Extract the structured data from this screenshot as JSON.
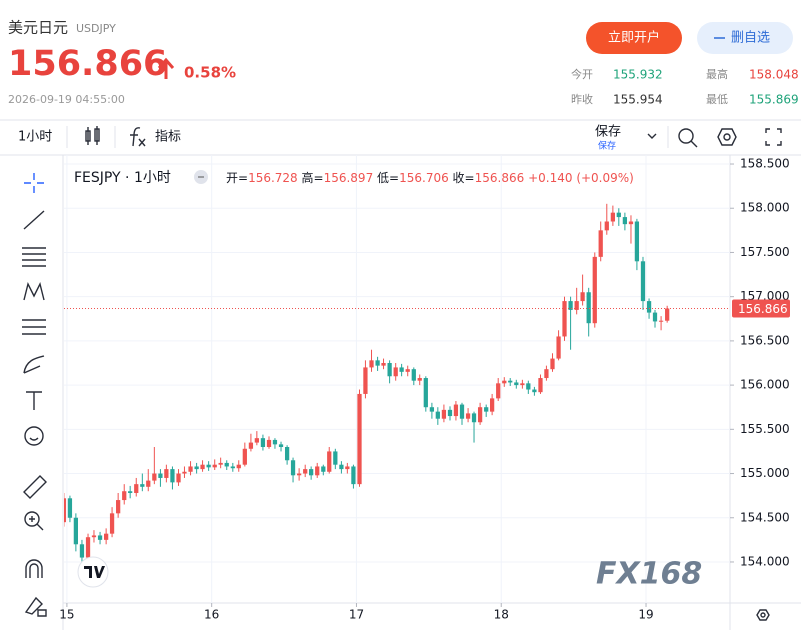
{
  "header": {
    "name": "美元日元",
    "code": "USDJPY",
    "price": "156.866",
    "change": "0.58%",
    "time": "2026-09-19 04:55:00"
  },
  "buttons": {
    "open_account": "立即开户",
    "remove_watch": "删自选"
  },
  "stats": [
    {
      "label": "今开",
      "value": "155.932",
      "color": "#1fa37a"
    },
    {
      "label": "最高",
      "value": "158.048",
      "color": "#e8433d"
    },
    {
      "label": "昨收",
      "value": "155.954",
      "color": "#333333"
    },
    {
      "label": "最低",
      "value": "155.869",
      "color": "#1fa37a"
    }
  ],
  "toolbar": {
    "interval": "1小时",
    "indicators": "指标",
    "save": "保存",
    "save_sub": "保存"
  },
  "chart_data": {
    "type": "candlestick",
    "title": "FESJPY · 1小时",
    "ohlc_labels": [
      "开=",
      "高=",
      "低=",
      "收="
    ],
    "change": "+0.140",
    "change_pct": "(+0.09%)",
    "watermark": "FX168",
    "up_color": "#ef5350",
    "down_color": "#26a69a",
    "grid": true,
    "xlim": [
      14.98,
      19.58
    ],
    "xticks": [
      15,
      16,
      17,
      18,
      19
    ],
    "ylim": [
      153.536,
      158.602
    ],
    "yticks": [
      {
        "value": 154,
        "label": "154.000"
      },
      {
        "value": 154.5,
        "label": "154.500"
      },
      {
        "value": 155,
        "label": "155.000"
      },
      {
        "value": 155.5,
        "label": "155.500"
      },
      {
        "value": 156,
        "label": "156.000"
      },
      {
        "value": 156.5,
        "label": "156.500"
      },
      {
        "value": 157,
        "label": "157.000"
      },
      {
        "value": 157.5,
        "label": "157.500"
      },
      {
        "value": 158,
        "label": "158.000"
      },
      {
        "value": 158.5,
        "label": "158.500"
      }
    ],
    "x": [
      14.979,
      15.021,
      15.062,
      15.104,
      15.146,
      15.187,
      15.229,
      15.271,
      15.312,
      15.354,
      15.396,
      15.437,
      15.479,
      15.521,
      15.562,
      15.604,
      15.646,
      15.687,
      15.729,
      15.771,
      15.812,
      15.854,
      15.896,
      15.937,
      15.979,
      16.021,
      16.062,
      16.104,
      16.146,
      16.187,
      16.229,
      16.271,
      16.312,
      16.354,
      16.396,
      16.437,
      16.479,
      16.521,
      16.562,
      16.604,
      16.646,
      16.687,
      16.729,
      16.771,
      16.812,
      16.854,
      16.896,
      16.937,
      16.979,
      17.021,
      17.062,
      17.104,
      17.146,
      17.187,
      17.229,
      17.271,
      17.312,
      17.354,
      17.396,
      17.437,
      17.479,
      17.521,
      17.562,
      17.604,
      17.646,
      17.687,
      17.729,
      17.771,
      17.812,
      17.854,
      17.896,
      17.937,
      17.979,
      18.021,
      18.062,
      18.104,
      18.146,
      18.187,
      18.229,
      18.271,
      18.312,
      18.354,
      18.396,
      18.437,
      18.479,
      18.521,
      18.562,
      18.604,
      18.646,
      18.687,
      18.729,
      18.771,
      18.812,
      18.854,
      18.896,
      18.937,
      18.979,
      19.021,
      19.062,
      19.104,
      19.146
    ],
    "open": [
      154.45,
      154.72,
      154.5,
      154.2,
      154.05,
      154.28,
      154.3,
      154.25,
      154.32,
      154.55,
      154.7,
      154.8,
      154.78,
      154.88,
      154.85,
      154.92,
      155.0,
      154.95,
      155.05,
      154.9,
      155.0,
      155.02,
      155.08,
      155.05,
      155.1,
      155.07,
      155.1,
      155.12,
      155.08,
      155.06,
      155.1,
      155.28,
      155.35,
      155.4,
      155.3,
      155.38,
      155.33,
      155.3,
      155.15,
      154.98,
      155.0,
      155.05,
      154.98,
      155.08,
      155.02,
      155.25,
      155.1,
      155.05,
      155.08,
      154.88,
      155.9,
      156.2,
      156.28,
      156.22,
      156.25,
      156.1,
      156.2,
      156.15,
      156.18,
      156.05,
      156.08,
      155.75,
      155.7,
      155.62,
      155.72,
      155.65,
      155.78,
      155.62,
      155.68,
      155.58,
      155.75,
      155.7,
      155.85,
      156.02,
      156.05,
      156.03,
      156.0,
      156.02,
      155.95,
      155.92,
      156.08,
      156.18,
      156.3,
      156.55,
      156.95,
      156.85,
      156.95,
      157.05,
      156.7,
      157.45,
      157.75,
      157.85,
      157.95,
      157.9,
      157.82,
      157.85,
      157.4,
      156.95,
      156.82,
      156.72,
      156.728
    ],
    "high": [
      154.78,
      154.75,
      154.55,
      154.25,
      154.32,
      154.36,
      154.34,
      154.38,
      154.62,
      154.78,
      154.88,
      154.86,
      154.95,
      155.0,
      155.05,
      155.3,
      155.05,
      155.1,
      155.08,
      155.05,
      155.08,
      155.14,
      155.12,
      155.15,
      155.14,
      155.16,
      155.18,
      155.15,
      155.12,
      155.15,
      155.35,
      155.45,
      155.48,
      155.44,
      155.42,
      155.4,
      155.36,
      155.32,
      155.18,
      155.06,
      155.1,
      155.08,
      155.12,
      155.1,
      155.3,
      155.28,
      155.14,
      155.12,
      155.1,
      155.95,
      156.28,
      156.4,
      156.32,
      156.3,
      156.28,
      156.25,
      156.24,
      156.22,
      156.2,
      156.12,
      156.1,
      155.8,
      155.75,
      155.78,
      155.76,
      155.82,
      155.8,
      155.74,
      155.7,
      155.8,
      155.78,
      155.9,
      156.08,
      156.09,
      156.08,
      156.06,
      156.06,
      156.05,
      155.98,
      156.12,
      156.22,
      156.36,
      156.62,
      157.0,
      157.0,
      157.1,
      157.25,
      157.1,
      157.5,
      157.85,
      158.05,
      158.03,
      158.0,
      157.95,
      157.92,
      157.88,
      157.45,
      156.98,
      156.85,
      156.78,
      156.897
    ],
    "low": [
      154.4,
      154.45,
      154.12,
      153.98,
      154.0,
      154.22,
      154.2,
      154.2,
      154.28,
      154.5,
      154.65,
      154.72,
      154.74,
      154.8,
      154.8,
      154.88,
      154.85,
      154.9,
      154.82,
      154.86,
      154.95,
      154.98,
      155.0,
      155.02,
      155.03,
      155.04,
      155.06,
      155.04,
      155.02,
      155.02,
      155.08,
      155.25,
      155.32,
      155.26,
      155.28,
      155.28,
      155.25,
      155.1,
      154.9,
      154.92,
      154.96,
      154.93,
      154.95,
      154.98,
      155.0,
      155.05,
      155.0,
      155.0,
      154.83,
      154.85,
      155.85,
      156.15,
      156.16,
      156.18,
      156.02,
      156.05,
      156.1,
      156.1,
      156.0,
      156.0,
      155.7,
      155.62,
      155.55,
      155.58,
      155.6,
      155.6,
      155.55,
      155.58,
      155.35,
      155.55,
      155.64,
      155.66,
      155.82,
      155.98,
      155.99,
      155.96,
      155.96,
      155.9,
      155.88,
      155.9,
      156.05,
      156.15,
      156.28,
      156.5,
      156.4,
      156.8,
      156.9,
      156.55,
      156.65,
      157.4,
      157.7,
      157.8,
      157.8,
      157.75,
      157.6,
      157.3,
      156.85,
      156.75,
      156.65,
      156.62,
      156.706
    ],
    "close": [
      154.72,
      154.5,
      154.2,
      154.05,
      154.28,
      154.3,
      154.25,
      154.32,
      154.55,
      154.7,
      154.8,
      154.78,
      154.88,
      154.85,
      154.92,
      155.0,
      154.95,
      155.05,
      154.9,
      155.0,
      155.02,
      155.08,
      155.05,
      155.1,
      155.07,
      155.1,
      155.12,
      155.08,
      155.06,
      155.1,
      155.28,
      155.35,
      155.4,
      155.3,
      155.38,
      155.33,
      155.3,
      155.15,
      154.98,
      155.0,
      155.05,
      154.98,
      155.08,
      155.02,
      155.25,
      155.1,
      155.05,
      155.08,
      154.88,
      155.9,
      156.2,
      156.28,
      156.22,
      156.25,
      156.1,
      156.2,
      156.15,
      156.18,
      156.05,
      156.08,
      155.75,
      155.7,
      155.62,
      155.72,
      155.65,
      155.78,
      155.62,
      155.68,
      155.58,
      155.75,
      155.7,
      155.85,
      156.02,
      156.05,
      156.03,
      156.0,
      156.02,
      155.95,
      155.92,
      156.08,
      156.18,
      156.3,
      156.55,
      156.95,
      156.85,
      156.95,
      157.05,
      156.7,
      157.45,
      157.75,
      157.85,
      157.95,
      157.9,
      157.82,
      157.85,
      157.4,
      156.95,
      156.82,
      156.72,
      156.728,
      156.866
    ]
  }
}
